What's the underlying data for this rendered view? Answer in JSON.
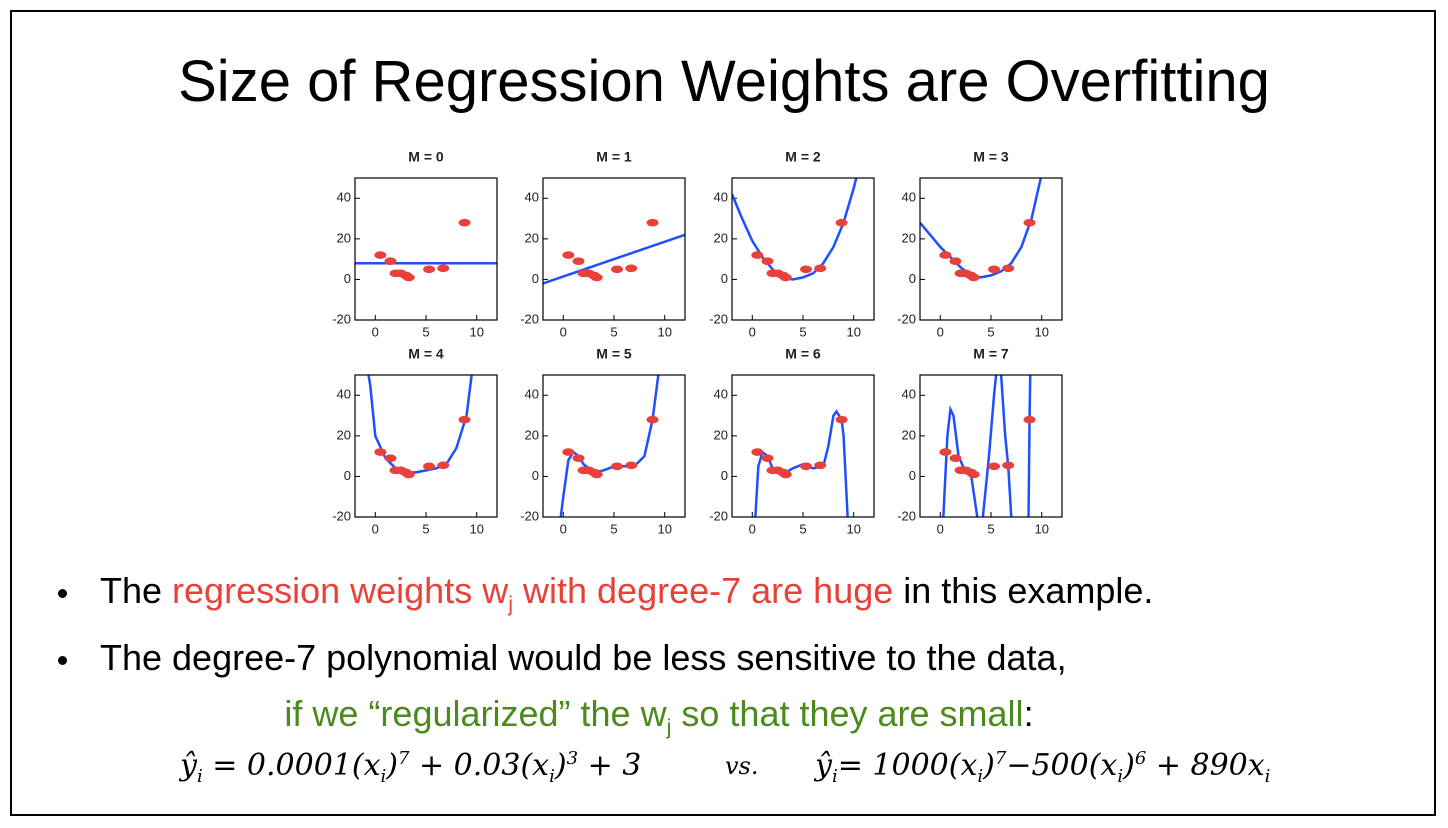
{
  "title": "Size of Regression Weights are Overfitting",
  "chart_data": [
    {
      "type": "line",
      "title": "M = 0",
      "xlim": [
        -2,
        12
      ],
      "ylim": [
        -20,
        50
      ],
      "xticks": [
        0,
        5,
        10
      ],
      "yticks": [
        -20,
        0,
        20,
        40
      ],
      "points": {
        "color": "#e8413c",
        "x": [
          0.5,
          1.5,
          2,
          2.5,
          3,
          3.3,
          5.3,
          6.7,
          8.8
        ],
        "values": [
          12,
          9,
          3,
          3,
          2,
          1,
          5,
          5.5,
          28
        ]
      },
      "curve": {
        "color": "#1f4fff",
        "x": [
          -2,
          12
        ],
        "values": [
          8,
          8
        ]
      }
    },
    {
      "type": "line",
      "title": "M = 1",
      "xlim": [
        -2,
        12
      ],
      "ylim": [
        -20,
        50
      ],
      "xticks": [
        0,
        5,
        10
      ],
      "yticks": [
        -20,
        0,
        20,
        40
      ],
      "points": {
        "color": "#e8413c",
        "x": [
          0.5,
          1.5,
          2,
          2.5,
          3,
          3.3,
          5.3,
          6.7,
          8.8
        ],
        "values": [
          12,
          9,
          3,
          3,
          2,
          1,
          5,
          5.5,
          28
        ]
      },
      "curve": {
        "color": "#1f4fff",
        "x": [
          -2,
          12
        ],
        "values": [
          -2,
          22
        ]
      }
    },
    {
      "type": "line",
      "title": "M = 2",
      "xlim": [
        -2,
        12
      ],
      "ylim": [
        -20,
        50
      ],
      "xticks": [
        0,
        5,
        10
      ],
      "yticks": [
        -20,
        0,
        20,
        40
      ],
      "points": {
        "color": "#e8413c",
        "x": [
          0.5,
          1.5,
          2,
          2.5,
          3,
          3.3,
          5.3,
          6.7,
          8.8
        ],
        "values": [
          12,
          9,
          3,
          3,
          2,
          1,
          5,
          5.5,
          28
        ]
      },
      "curve": {
        "color": "#1f4fff",
        "x": [
          -2,
          -1,
          0,
          1,
          2,
          3,
          4,
          5,
          6,
          7,
          8,
          9,
          10,
          11
        ],
        "values": [
          42,
          30,
          19,
          11,
          5,
          1,
          0,
          1,
          3,
          8,
          16,
          28,
          45,
          65
        ]
      }
    },
    {
      "type": "line",
      "title": "M = 3",
      "xlim": [
        -2,
        12
      ],
      "ylim": [
        -20,
        50
      ],
      "xticks": [
        0,
        5,
        10
      ],
      "yticks": [
        -20,
        0,
        20,
        40
      ],
      "points": {
        "color": "#e8413c",
        "x": [
          0.5,
          1.5,
          2,
          2.5,
          3,
          3.3,
          5.3,
          6.7,
          8.8
        ],
        "values": [
          12,
          9,
          3,
          3,
          2,
          1,
          5,
          5.5,
          28
        ]
      },
      "curve": {
        "color": "#1f4fff",
        "x": [
          -2,
          -1,
          0,
          1,
          2,
          3,
          4,
          5,
          6,
          7,
          8,
          9,
          10
        ],
        "values": [
          28,
          22,
          16,
          11,
          6,
          2,
          1,
          2,
          4,
          8,
          16,
          30,
          52
        ]
      }
    },
    {
      "type": "line",
      "title": "M = 4",
      "xlim": [
        -2,
        12
      ],
      "ylim": [
        -20,
        50
      ],
      "xticks": [
        0,
        5,
        10
      ],
      "yticks": [
        -20,
        0,
        20,
        40
      ],
      "points": {
        "color": "#e8413c",
        "x": [
          0.5,
          1.5,
          2,
          2.5,
          3,
          3.3,
          5.3,
          6.7,
          8.8
        ],
        "values": [
          12,
          9,
          3,
          3,
          2,
          1,
          5,
          5.5,
          28
        ]
      },
      "curve": {
        "color": "#1f4fff",
        "x": [
          -1,
          -0.5,
          0,
          1,
          2,
          3,
          4,
          5,
          6,
          7,
          8,
          9,
          10
        ],
        "values": [
          60,
          45,
          20,
          9,
          4,
          2,
          2,
          3,
          4,
          6,
          14,
          30,
          70
        ]
      }
    },
    {
      "type": "line",
      "title": "M = 5",
      "xlim": [
        -2,
        12
      ],
      "ylim": [
        -20,
        50
      ],
      "xticks": [
        0,
        5,
        10
      ],
      "yticks": [
        -20,
        0,
        20,
        40
      ],
      "points": {
        "color": "#e8413c",
        "x": [
          0.5,
          1.5,
          2,
          2.5,
          3,
          3.3,
          5.3,
          6.7,
          8.8
        ],
        "values": [
          12,
          9,
          3,
          3,
          2,
          1,
          5,
          5.5,
          28
        ]
      },
      "curve": {
        "color": "#1f4fff",
        "x": [
          -0.5,
          0,
          0.5,
          1,
          1.5,
          2,
          3,
          4,
          5,
          6,
          7,
          8,
          8.8,
          9.5
        ],
        "values": [
          -30,
          -10,
          8,
          12,
          10,
          6,
          2,
          3,
          5,
          5,
          5,
          10,
          28,
          55
        ]
      }
    },
    {
      "type": "line",
      "title": "M = 6",
      "xlim": [
        -2,
        12
      ],
      "ylim": [
        -20,
        50
      ],
      "xticks": [
        0,
        5,
        10
      ],
      "yticks": [
        -20,
        0,
        20,
        40
      ],
      "points": {
        "color": "#e8413c",
        "x": [
          0.5,
          1.5,
          2,
          2.5,
          3,
          3.3,
          5.3,
          6.7,
          8.8
        ],
        "values": [
          12,
          9,
          3,
          3,
          2,
          1,
          5,
          5.5,
          28
        ]
      },
      "curve": {
        "color": "#1f4fff",
        "x": [
          0,
          0.3,
          0.6,
          1,
          1.5,
          2,
          3,
          4,
          5,
          6,
          7,
          7.5,
          8,
          8.3,
          8.8,
          9,
          9.5
        ],
        "values": [
          -40,
          -20,
          5,
          12,
          10,
          4,
          1,
          4,
          6,
          4,
          5,
          15,
          30,
          32,
          28,
          20,
          -30
        ]
      }
    },
    {
      "type": "line",
      "title": "M = 7",
      "xlim": [
        -2,
        12
      ],
      "ylim": [
        -20,
        50
      ],
      "xticks": [
        0,
        5,
        10
      ],
      "yticks": [
        -20,
        0,
        20,
        40
      ],
      "points": {
        "color": "#e8413c",
        "x": [
          0.5,
          1.5,
          2,
          2.5,
          3,
          3.3,
          5.3,
          6.7,
          8.8
        ],
        "values": [
          12,
          9,
          3,
          3,
          2,
          1,
          5,
          5.5,
          28
        ]
      },
      "curve": {
        "color": "#1f4fff",
        "x": [
          0,
          0.3,
          0.7,
          1,
          1.3,
          1.8,
          2.5,
          3,
          3.5,
          3.8,
          4.2,
          4.8,
          5.3,
          5.6,
          6,
          6.4,
          6.7,
          7,
          7.3,
          8.2,
          8.7,
          8.8,
          8.9
        ],
        "values": [
          -30,
          -20,
          20,
          33,
          30,
          10,
          2,
          2,
          -15,
          -25,
          -20,
          10,
          40,
          55,
          50,
          20,
          5,
          -20,
          -50,
          -60,
          -20,
          28,
          60
        ]
      }
    }
  ],
  "bullets": [
    [
      {
        "text": "The "
      },
      {
        "text": "regression weights w",
        "color": "#e8413c"
      },
      {
        "text": "j",
        "color": "#e8413c",
        "pos": "sub"
      },
      {
        "text": " with degree-7 are huge",
        "color": "#e8413c"
      },
      {
        "text": " in this example."
      }
    ],
    [
      {
        "text": "The degree-7 polynomial would be less sensitive to the data,"
      }
    ]
  ],
  "continuation": [
    {
      "text": "if we “regularized” the w",
      "color": "#4a8a1e"
    },
    {
      "text": "j",
      "color": "#4a8a1e",
      "pos": "sub"
    },
    {
      "text": " so that they are small",
      "color": "#4a8a1e"
    },
    {
      "text": ":"
    }
  ],
  "formulas": [
    [
      {
        "text": "ŷ"
      },
      {
        "text": "i",
        "pos": "sub"
      },
      {
        "text": " = 0.0001(x"
      },
      {
        "text": "i",
        "pos": "sub"
      },
      {
        "text": ")"
      },
      {
        "text": "7",
        "pos": "sup"
      },
      {
        "text": " + 0.03(x"
      },
      {
        "text": "i",
        "pos": "sub"
      },
      {
        "text": ")"
      },
      {
        "text": "3",
        "pos": "sup"
      },
      {
        "text": " + 3"
      }
    ],
    [
      {
        "text": "vs."
      }
    ],
    [
      {
        "text": "ŷ"
      },
      {
        "text": "i",
        "pos": "sub"
      },
      {
        "text": "= 1000(x"
      },
      {
        "text": "i",
        "pos": "sub"
      },
      {
        "text": ")"
      },
      {
        "text": "7",
        "pos": "sup"
      },
      {
        "text": "−500(x"
      },
      {
        "text": "i",
        "pos": "sub"
      },
      {
        "text": ")"
      },
      {
        "text": "6",
        "pos": "sup"
      },
      {
        "text": " + 890x"
      },
      {
        "text": "i",
        "pos": "sub"
      }
    ]
  ]
}
